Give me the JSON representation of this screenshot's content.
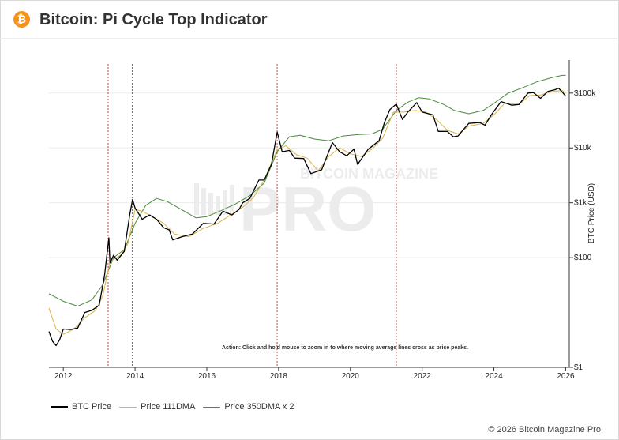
{
  "header": {
    "logo_glyph": "₿",
    "title": "Bitcoin: Pi Cycle Top Indicator"
  },
  "watermark": {
    "top": "BITCOIN MAGAZINE",
    "main": "PRO"
  },
  "annotation": "Action: Click and hold mouse to zoom in to where moving average lines cross as price peaks.",
  "copyright": "© 2026 Bitcoin Magazine Pro.",
  "colors": {
    "btc": "#000000",
    "dma111": "#d8b44a",
    "dma350x2": "#4a8a3c",
    "peak_line": "#cc4444",
    "logo": "#f7931a"
  },
  "chart_data": {
    "type": "line",
    "title": "Bitcoin: Pi Cycle Top Indicator",
    "xlabel": "",
    "ylabel": "BTC Price (USD)",
    "y_scale": "log",
    "ylim": [
      1,
      400000
    ],
    "xlim": [
      2011.6,
      2026.1
    ],
    "x_ticks": [
      2012,
      2014,
      2016,
      2018,
      2020,
      2022,
      2024,
      2026
    ],
    "y_ticks": [
      {
        "value": 1,
        "label": "$1"
      },
      {
        "value": 100,
        "label": "$100"
      },
      {
        "value": 1000,
        "label": "$1k"
      },
      {
        "value": 10000,
        "label": "$10k"
      },
      {
        "value": 100000,
        "label": "$100k"
      }
    ],
    "legend_position": "bottom-left",
    "grid": "horizontal",
    "pi_cycle_tops": [
      2013.25,
      2013.92,
      2017.96,
      2021.28
    ],
    "series": [
      {
        "name": "BTC Price",
        "points": [
          [
            2011.6,
            4.5
          ],
          [
            2011.7,
            3
          ],
          [
            2011.8,
            2.5
          ],
          [
            2011.9,
            3.2
          ],
          [
            2012.0,
            5
          ],
          [
            2012.2,
            4.9
          ],
          [
            2012.4,
            5.2
          ],
          [
            2012.6,
            10
          ],
          [
            2012.8,
            11
          ],
          [
            2013.0,
            13.5
          ],
          [
            2013.15,
            47
          ],
          [
            2013.27,
            230
          ],
          [
            2013.3,
            80
          ],
          [
            2013.4,
            110
          ],
          [
            2013.5,
            90
          ],
          [
            2013.7,
            130
          ],
          [
            2013.85,
            600
          ],
          [
            2013.93,
            1150
          ],
          [
            2014.0,
            800
          ],
          [
            2014.2,
            500
          ],
          [
            2014.4,
            600
          ],
          [
            2014.6,
            500
          ],
          [
            2014.8,
            350
          ],
          [
            2014.95,
            320
          ],
          [
            2015.05,
            210
          ],
          [
            2015.3,
            240
          ],
          [
            2015.6,
            270
          ],
          [
            2015.9,
            420
          ],
          [
            2016.2,
            410
          ],
          [
            2016.45,
            700
          ],
          [
            2016.7,
            600
          ],
          [
            2016.9,
            760
          ],
          [
            2017.0,
            1000
          ],
          [
            2017.2,
            1200
          ],
          [
            2017.45,
            2600
          ],
          [
            2017.6,
            2600
          ],
          [
            2017.8,
            5000
          ],
          [
            2017.96,
            19500
          ],
          [
            2018.1,
            8500
          ],
          [
            2018.3,
            9000
          ],
          [
            2018.45,
            6500
          ],
          [
            2018.7,
            6400
          ],
          [
            2018.9,
            3400
          ],
          [
            2019.2,
            4000
          ],
          [
            2019.5,
            12500
          ],
          [
            2019.7,
            8500
          ],
          [
            2019.9,
            7200
          ],
          [
            2020.1,
            9500
          ],
          [
            2020.2,
            5000
          ],
          [
            2020.5,
            9500
          ],
          [
            2020.8,
            13500
          ],
          [
            2020.95,
            29000
          ],
          [
            2021.1,
            50000
          ],
          [
            2021.28,
            63000
          ],
          [
            2021.45,
            33000
          ],
          [
            2021.6,
            45000
          ],
          [
            2021.85,
            67000
          ],
          [
            2022.0,
            45000
          ],
          [
            2022.3,
            40000
          ],
          [
            2022.45,
            20000
          ],
          [
            2022.7,
            20000
          ],
          [
            2022.87,
            16000
          ],
          [
            2023.0,
            16500
          ],
          [
            2023.3,
            28000
          ],
          [
            2023.6,
            29000
          ],
          [
            2023.75,
            26000
          ],
          [
            2023.95,
            42000
          ],
          [
            2024.2,
            70000
          ],
          [
            2024.5,
            60000
          ],
          [
            2024.7,
            62000
          ],
          [
            2024.95,
            100000
          ],
          [
            2025.1,
            102000
          ],
          [
            2025.3,
            80000
          ],
          [
            2025.5,
            107000
          ],
          [
            2025.7,
            115000
          ],
          [
            2025.8,
            123000
          ],
          [
            2025.9,
            105000
          ],
          [
            2026.0,
            88000
          ]
        ]
      },
      {
        "name": "Price 111DMA",
        "points": [
          [
            2011.6,
            12
          ],
          [
            2011.8,
            5
          ],
          [
            2012.0,
            4
          ],
          [
            2012.3,
            5
          ],
          [
            2012.6,
            8
          ],
          [
            2012.9,
            11
          ],
          [
            2013.1,
            20
          ],
          [
            2013.3,
            85
          ],
          [
            2013.6,
            110
          ],
          [
            2013.8,
            180
          ],
          [
            2014.0,
            750
          ],
          [
            2014.2,
            700
          ],
          [
            2014.5,
            550
          ],
          [
            2014.8,
            420
          ],
          [
            2015.1,
            270
          ],
          [
            2015.5,
            240
          ],
          [
            2015.9,
            340
          ],
          [
            2016.3,
            420
          ],
          [
            2016.7,
            620
          ],
          [
            2017.0,
            830
          ],
          [
            2017.3,
            1250
          ],
          [
            2017.6,
            2600
          ],
          [
            2017.95,
            9000
          ],
          [
            2018.2,
            11000
          ],
          [
            2018.5,
            7500
          ],
          [
            2018.8,
            6500
          ],
          [
            2019.1,
            3800
          ],
          [
            2019.4,
            7000
          ],
          [
            2019.7,
            10000
          ],
          [
            2020.0,
            7800
          ],
          [
            2020.3,
            7000
          ],
          [
            2020.6,
            9500
          ],
          [
            2020.9,
            15000
          ],
          [
            2021.2,
            45000
          ],
          [
            2021.5,
            45000
          ],
          [
            2021.8,
            48000
          ],
          [
            2022.1,
            45000
          ],
          [
            2022.4,
            33000
          ],
          [
            2022.7,
            21000
          ],
          [
            2023.0,
            18000
          ],
          [
            2023.3,
            25000
          ],
          [
            2023.7,
            28000
          ],
          [
            2024.0,
            40000
          ],
          [
            2024.3,
            65000
          ],
          [
            2024.7,
            62000
          ],
          [
            2025.0,
            90000
          ],
          [
            2025.3,
            92000
          ],
          [
            2025.6,
            105000
          ],
          [
            2025.9,
            112000
          ],
          [
            2026.0,
            100000
          ]
        ]
      },
      {
        "name": "Price 350DMA x 2",
        "points": [
          [
            2011.6,
            22
          ],
          [
            2012.0,
            16
          ],
          [
            2012.4,
            13
          ],
          [
            2012.8,
            17
          ],
          [
            2013.1,
            32
          ],
          [
            2013.4,
            100
          ],
          [
            2013.7,
            140
          ],
          [
            2014.0,
            420
          ],
          [
            2014.3,
            900
          ],
          [
            2014.6,
            1200
          ],
          [
            2014.9,
            1050
          ],
          [
            2015.3,
            750
          ],
          [
            2015.7,
            530
          ],
          [
            2016.0,
            560
          ],
          [
            2016.4,
            720
          ],
          [
            2016.8,
            950
          ],
          [
            2017.2,
            1350
          ],
          [
            2017.6,
            2300
          ],
          [
            2017.96,
            8500
          ],
          [
            2018.3,
            16000
          ],
          [
            2018.6,
            17000
          ],
          [
            2019.0,
            14500
          ],
          [
            2019.4,
            13500
          ],
          [
            2019.8,
            16500
          ],
          [
            2020.2,
            17500
          ],
          [
            2020.6,
            18000
          ],
          [
            2020.9,
            22000
          ],
          [
            2021.28,
            48000
          ],
          [
            2021.6,
            68000
          ],
          [
            2021.9,
            82000
          ],
          [
            2022.2,
            78000
          ],
          [
            2022.6,
            62000
          ],
          [
            2022.9,
            48000
          ],
          [
            2023.3,
            42000
          ],
          [
            2023.7,
            48000
          ],
          [
            2024.0,
            65000
          ],
          [
            2024.4,
            100000
          ],
          [
            2024.8,
            125000
          ],
          [
            2025.2,
            160000
          ],
          [
            2025.6,
            190000
          ],
          [
            2025.9,
            210000
          ],
          [
            2026.0,
            210000
          ]
        ]
      }
    ]
  }
}
